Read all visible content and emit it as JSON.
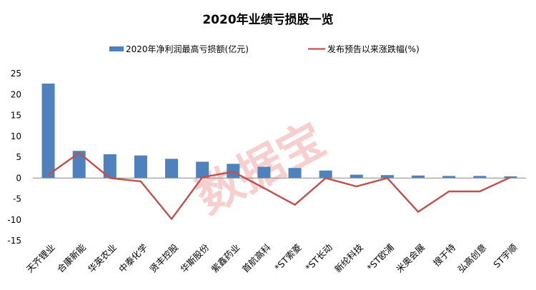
{
  "chart_data": {
    "type": "bar",
    "title": "2020年业绩亏损股一览",
    "watermark": "数据宝",
    "categories": [
      "天齐锂业",
      "合康新能",
      "华英农业",
      "中泰化学",
      "贤丰控股",
      "华斯股份",
      "紫鑫药业",
      "首航高科",
      "*ST索菱",
      "*ST长动",
      "新纶科技",
      "*ST欧浦",
      "米奥会展",
      "搜于特",
      "弘高创意",
      "ST宇顺"
    ],
    "series": [
      {
        "name": "2020年净利润最高亏损额(亿元)",
        "type": "bar",
        "color": "#4f81bd",
        "values": [
          22.6,
          6.5,
          5.7,
          5.4,
          4.6,
          3.9,
          3.4,
          2.7,
          2.4,
          1.8,
          0.8,
          0.7,
          0.6,
          0.5,
          0.5,
          0.4
        ]
      },
      {
        "name": "发布预告以来涨跌幅(%)",
        "type": "line",
        "color": "#c0504d",
        "values": [
          0.8,
          6.0,
          0.0,
          -0.8,
          -9.8,
          0.2,
          1.5,
          -2.4,
          -6.4,
          0.0,
          -2.0,
          0.0,
          -8.1,
          -3.2,
          -3.2,
          0.2
        ]
      }
    ],
    "ylim": [
      -15,
      25
    ],
    "yticks": [
      -15,
      -10,
      -5,
      0,
      5,
      10,
      15,
      20,
      25
    ],
    "xlabel": "",
    "ylabel": "",
    "grid": false,
    "legend_position": "top"
  }
}
